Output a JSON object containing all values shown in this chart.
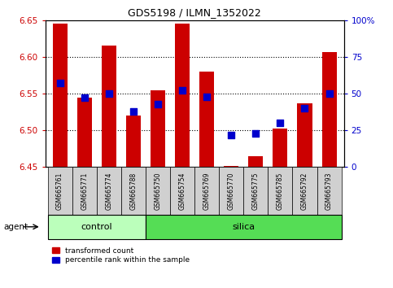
{
  "title": "GDS5198 / ILMN_1352022",
  "samples": [
    "GSM665761",
    "GSM665771",
    "GSM665774",
    "GSM665788",
    "GSM665750",
    "GSM665754",
    "GSM665769",
    "GSM665770",
    "GSM665775",
    "GSM665785",
    "GSM665792",
    "GSM665793"
  ],
  "groups": [
    "control",
    "control",
    "control",
    "control",
    "silica",
    "silica",
    "silica",
    "silica",
    "silica",
    "silica",
    "silica",
    "silica"
  ],
  "red_values": [
    6.645,
    6.545,
    6.615,
    6.52,
    6.555,
    6.645,
    6.58,
    6.452,
    6.465,
    6.502,
    6.537,
    6.607
  ],
  "blue_percentiles": [
    57,
    47,
    50,
    38,
    43,
    52,
    48,
    22,
    23,
    30,
    40,
    50
  ],
  "ylim_left": [
    6.45,
    6.65
  ],
  "ylim_right": [
    0,
    100
  ],
  "yticks_left": [
    6.45,
    6.5,
    6.55,
    6.6,
    6.65
  ],
  "yticks_right": [
    0,
    25,
    50,
    75,
    100
  ],
  "ytick_labels_right": [
    "0",
    "25",
    "50",
    "75",
    "100%"
  ],
  "bar_bottom": 6.45,
  "red_color": "#cc0000",
  "blue_color": "#0000cc",
  "control_color": "#bbffbb",
  "silica_color": "#55dd55",
  "agent_label": "agent",
  "legend_red": "transformed count",
  "legend_blue": "percentile rank within the sample",
  "bar_width": 0.6,
  "blue_marker_size": 28,
  "n_control": 4
}
